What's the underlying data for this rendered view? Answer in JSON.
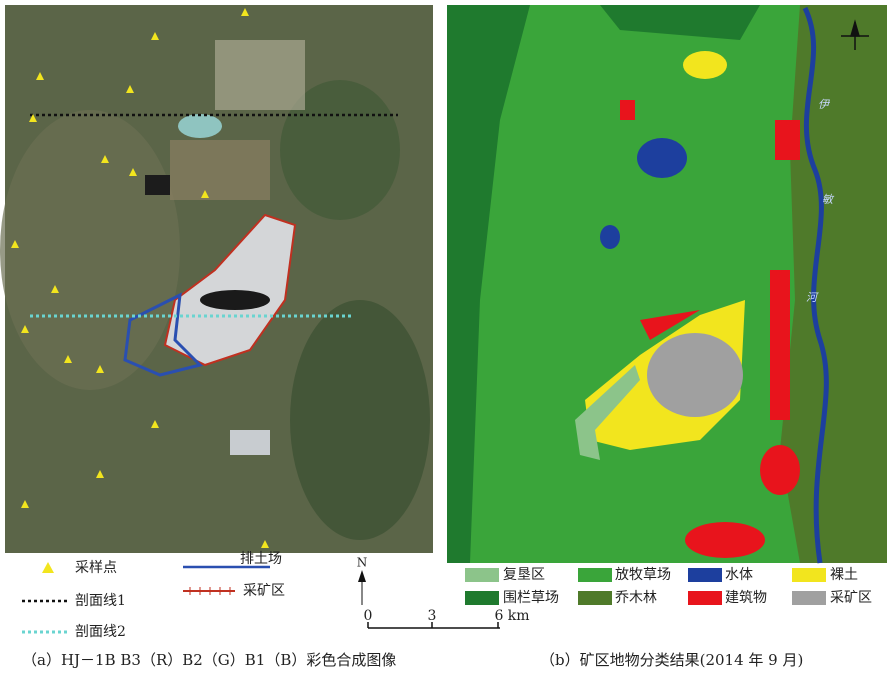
{
  "left_map": {
    "legend": {
      "sample_point": "采样点",
      "profile_1": "剖面线1",
      "profile_2": "剖面线2",
      "dump": "排土场",
      "mining": "采矿区"
    },
    "north": "N",
    "scale": [
      "0",
      "3",
      "6 km"
    ],
    "caption": "（a）HJ－1B B3（R）B2（G）B1（B）彩色合成图像"
  },
  "right_map": {
    "river_labels": [
      "伊",
      "敏",
      "河"
    ],
    "legend": [
      {
        "label": "复垦区",
        "color": "#8cc48a"
      },
      {
        "label": "围栏草场",
        "color": "#1f7a2e"
      },
      {
        "label": "放牧草场",
        "color": "#3aa53a"
      },
      {
        "label": "乔木林",
        "color": "#4f7a2a"
      },
      {
        "label": "水体",
        "color": "#1d3f9e"
      },
      {
        "label": "建筑物",
        "color": "#e8141c"
      },
      {
        "label": "裸土",
        "color": "#f2e51e"
      },
      {
        "label": "采矿区",
        "color": "#a0a0a0"
      }
    ],
    "caption": "（b）矿区地物分类结果(2014 年 9 月)"
  }
}
